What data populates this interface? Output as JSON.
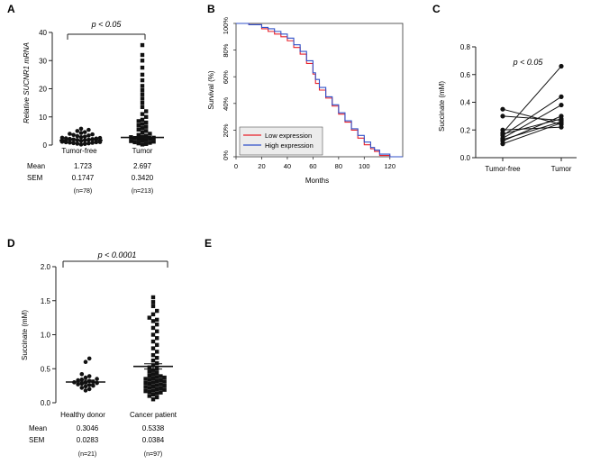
{
  "chart_data": [
    {
      "panel": "A",
      "type": "scatter",
      "title": "",
      "ylabel": "Relative SUCNR1 mRNA",
      "ylim": [
        0,
        40
      ],
      "yticks": [
        "0",
        "10",
        "20",
        "30",
        "40"
      ],
      "categories": [
        "Tumor-free",
        "Tumor"
      ],
      "significance": "p < 0.05",
      "stats": {
        "mean_label": "Mean",
        "sem_label": "SEM",
        "mean": [
          "1.723",
          "2.697"
        ],
        "sem": [
          "0.1747",
          "0.3420"
        ],
        "n": [
          "(n=78)",
          "(n=213)"
        ]
      },
      "series": [
        {
          "name": "Tumor-free",
          "marker": "circle",
          "mean": 1.723,
          "sem": 0.1747,
          "values": [
            0.2,
            0.4,
            0.5,
            0.6,
            0.7,
            0.8,
            0.9,
            1.0,
            1.0,
            1.1,
            1.2,
            1.2,
            1.3,
            1.4,
            1.4,
            1.5,
            1.5,
            1.6,
            1.7,
            1.8,
            1.9,
            2.0,
            2.1,
            2.2,
            2.3,
            2.4,
            2.5,
            2.6,
            2.8,
            3.0,
            3.2,
            3.4,
            3.6,
            3.8,
            4.0,
            4.3,
            4.6,
            5.0,
            5.4,
            5.8
          ]
        },
        {
          "name": "Tumor",
          "marker": "square",
          "mean": 2.697,
          "sem": 0.342,
          "values": [
            0.2,
            0.4,
            0.6,
            0.8,
            1.0,
            1.2,
            1.4,
            1.6,
            1.8,
            2.0,
            2.2,
            2.4,
            2.6,
            2.8,
            3.0,
            3.3,
            3.6,
            4.0,
            4.5,
            5.0,
            5.5,
            6.0,
            6.5,
            7.0,
            7.5,
            8.0,
            8.5,
            9.0,
            10.0,
            11.0,
            12.0,
            13.5,
            15.0,
            16.5,
            18.0,
            19.5,
            21.0,
            23.0,
            25.0,
            27.5,
            30.0,
            32.0,
            35.5
          ]
        }
      ]
    },
    {
      "panel": "B",
      "type": "line",
      "title": "",
      "xlabel": "Months",
      "ylabel": "Survival (%)",
      "xlim": [
        0,
        130
      ],
      "ylim": [
        0,
        100
      ],
      "xticks": [
        "0",
        "20",
        "40",
        "60",
        "80",
        "100",
        "120"
      ],
      "yticks": [
        "0%",
        "20%",
        "40%",
        "60%",
        "80%",
        "100%"
      ],
      "legend": [
        "Low expression",
        "High expression"
      ],
      "legend_position": "bottom-left",
      "x": [
        0,
        10,
        20,
        25,
        30,
        35,
        40,
        45,
        50,
        55,
        60,
        62,
        65,
        70,
        75,
        80,
        85,
        90,
        95,
        100,
        105,
        108,
        112,
        120,
        130
      ],
      "series": [
        {
          "name": "Low expression",
          "color": "#e8202a",
          "values": [
            100,
            99,
            96,
            94,
            92,
            90,
            87,
            82,
            77,
            70,
            62,
            55,
            50,
            44,
            38,
            32,
            26,
            20,
            14,
            9,
            6,
            4,
            1,
            0,
            0
          ]
        },
        {
          "name": "High expression",
          "color": "#3050c8",
          "values": [
            100,
            99,
            97,
            96,
            94,
            92,
            89,
            84,
            79,
            72,
            63,
            58,
            52,
            45,
            39,
            33,
            27,
            21,
            16,
            11,
            7,
            5,
            2,
            0,
            0
          ]
        }
      ]
    },
    {
      "panel": "C",
      "type": "line",
      "title": "",
      "ylabel": "Succinate (mM)",
      "ylim": [
        0,
        0.8
      ],
      "yticks": [
        "0.0",
        "0.2",
        "0.4",
        "0.6",
        "0.8"
      ],
      "categories": [
        "Tumor-free",
        "Tumor"
      ],
      "significance": "p < 0.05",
      "pairs": [
        [
          0.35,
          0.24
        ],
        [
          0.3,
          0.27
        ],
        [
          0.18,
          0.66
        ],
        [
          0.16,
          0.44
        ],
        [
          0.14,
          0.38
        ],
        [
          0.12,
          0.3
        ],
        [
          0.1,
          0.25
        ],
        [
          0.17,
          0.28
        ],
        [
          0.2,
          0.22
        ],
        [
          0.13,
          0.26
        ]
      ]
    },
    {
      "panel": "D",
      "type": "scatter",
      "title": "",
      "ylabel": "Succinate (mM)",
      "ylim": [
        0,
        2.0
      ],
      "yticks": [
        "0.0",
        "0.5",
        "1.0",
        "1.5",
        "2.0"
      ],
      "categories": [
        "Healthy donor",
        "Cancer patient"
      ],
      "significance": "p < 0.0001",
      "stats": {
        "mean_label": "Mean",
        "sem_label": "SEM",
        "mean": [
          "0.3046",
          "0.5338"
        ],
        "sem": [
          "0.0283",
          "0.0384"
        ],
        "n": [
          "(n=21)",
          "(n=97)"
        ]
      },
      "series": [
        {
          "name": "Healthy donor",
          "marker": "circle",
          "mean": 0.3046,
          "sem": 0.0283,
          "values": [
            0.18,
            0.2,
            0.22,
            0.24,
            0.25,
            0.26,
            0.27,
            0.28,
            0.29,
            0.3,
            0.3,
            0.31,
            0.32,
            0.33,
            0.34,
            0.35,
            0.37,
            0.39,
            0.42,
            0.6,
            0.65
          ]
        },
        {
          "name": "Cancer patient",
          "marker": "square",
          "mean": 0.5338,
          "sem": 0.0384,
          "values": [
            0.05,
            0.08,
            0.1,
            0.12,
            0.14,
            0.15,
            0.16,
            0.17,
            0.18,
            0.19,
            0.2,
            0.21,
            0.22,
            0.23,
            0.24,
            0.25,
            0.26,
            0.27,
            0.28,
            0.29,
            0.3,
            0.31,
            0.32,
            0.33,
            0.34,
            0.35,
            0.36,
            0.37,
            0.38,
            0.39,
            0.4,
            0.42,
            0.44,
            0.46,
            0.48,
            0.5,
            0.52,
            0.55,
            0.58,
            0.62,
            0.66,
            0.7,
            0.75,
            0.8,
            0.85,
            0.9,
            0.95,
            1.0,
            1.05,
            1.1,
            1.15,
            1.2,
            1.22,
            1.25,
            1.3,
            1.35,
            1.42,
            1.48,
            1.55
          ]
        }
      ]
    },
    {
      "panel": "E",
      "type": "table",
      "note": ""
    }
  ]
}
